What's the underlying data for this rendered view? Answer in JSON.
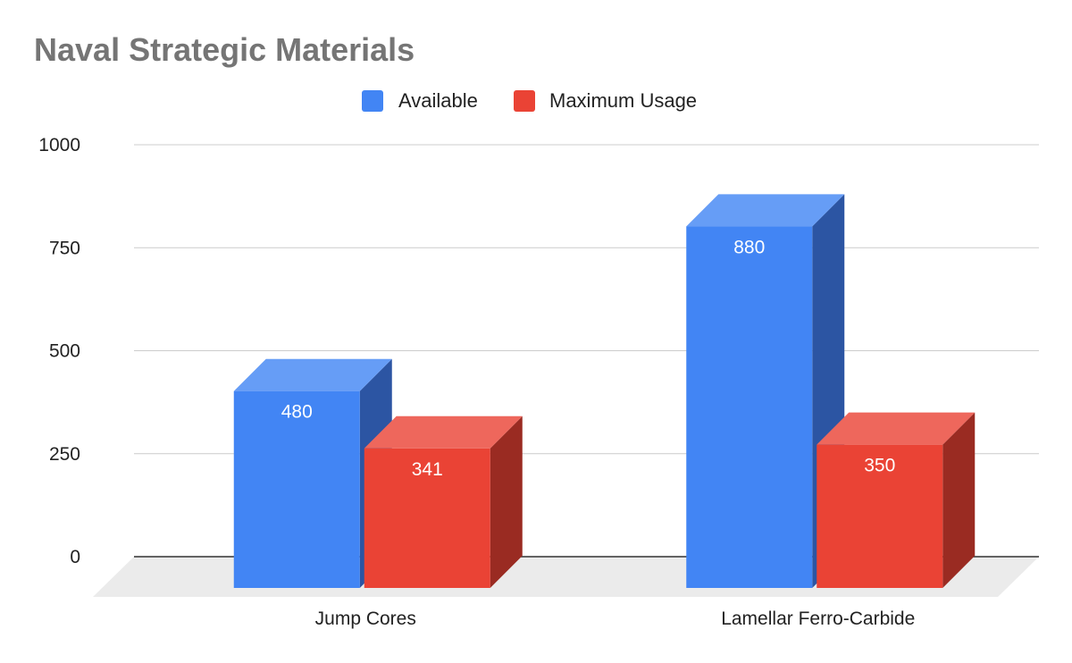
{
  "chart_data": {
    "type": "bar",
    "title": "Naval Strategic Materials",
    "categories": [
      "Jump Cores",
      "Lamellar Ferro-Carbide"
    ],
    "series": [
      {
        "name": "Available",
        "values": [
          480,
          880
        ],
        "color": "#4285F4",
        "top_color": "#669DF6",
        "side_color": "#2C55A3"
      },
      {
        "name": "Maximum Usage",
        "values": [
          341,
          350
        ],
        "color": "#EA4335",
        "top_color": "#EE675C",
        "side_color": "#9A2B22"
      }
    ],
    "yticks": [
      "0",
      "250",
      "500",
      "750",
      "1000"
    ],
    "ylim": [
      0,
      1000
    ],
    "grid": true,
    "legend": "top-center",
    "three_d": true
  }
}
